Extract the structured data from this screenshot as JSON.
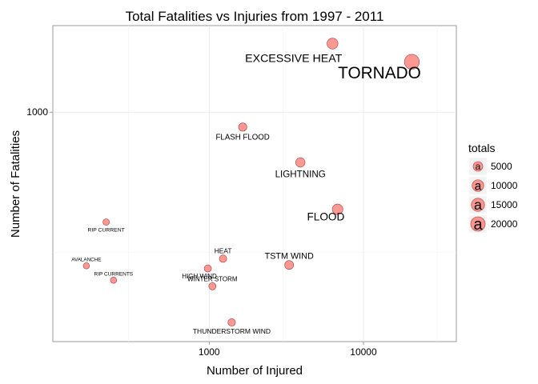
{
  "chart_data": {
    "type": "scatter",
    "title": "Total Fatalities vs Injuries from 1997 - 2011",
    "xlabel": "Number of Injured",
    "ylabel": "Number of Fatalities",
    "x_scale": "log10",
    "y_scale": "log10",
    "xlim": [
      97,
      40000
    ],
    "ylim": [
      140,
      2100
    ],
    "x_ticks": [
      1000,
      10000
    ],
    "x_tick_labels": [
      "1000",
      "10000"
    ],
    "y_ticks": [
      1000
    ],
    "y_tick_labels": [
      "1000"
    ],
    "grid": true,
    "point_color": "#F8766D",
    "legend": {
      "title": "totals",
      "position": "right",
      "glyph": "a",
      "entries": [
        {
          "value": 5000,
          "label": "5000"
        },
        {
          "value": 10000,
          "label": "10000"
        },
        {
          "value": 15000,
          "label": "15000"
        },
        {
          "value": 20000,
          "label": "20000"
        }
      ]
    },
    "points": [
      {
        "label": "TORNADO",
        "injured": 20600,
        "fatalities": 1540,
        "total": 22140
      },
      {
        "label": "EXCESSIVE HEAT",
        "injured": 6300,
        "fatalities": 1800,
        "total": 8100
      },
      {
        "label": "FLOOD",
        "injured": 6800,
        "fatalities": 435,
        "total": 7235
      },
      {
        "label": "LIGHTNING",
        "injured": 3900,
        "fatalities": 650,
        "total": 4550
      },
      {
        "label": "TSTM WIND",
        "injured": 3300,
        "fatalities": 270,
        "total": 3570
      },
      {
        "label": "FLASH FLOOD",
        "injured": 1650,
        "fatalities": 880,
        "total": 2530
      },
      {
        "label": "HEAT",
        "injured": 1230,
        "fatalities": 285,
        "total": 1515
      },
      {
        "label": "WINTER STORM",
        "injured": 1050,
        "fatalities": 225,
        "total": 1275
      },
      {
        "label": "HIGH WIND",
        "injured": 980,
        "fatalities": 262,
        "total": 1242
      },
      {
        "label": "THUNDERSTORM WIND",
        "injured": 1400,
        "fatalities": 165,
        "total": 1565
      },
      {
        "label": "RIP CURRENT",
        "injured": 215,
        "fatalities": 390,
        "total": 605
      },
      {
        "label": "RIP CURRENTS",
        "injured": 240,
        "fatalities": 237,
        "total": 477
      },
      {
        "label": "AVALANCHE",
        "injured": 160,
        "fatalities": 268,
        "total": 428
      }
    ]
  }
}
